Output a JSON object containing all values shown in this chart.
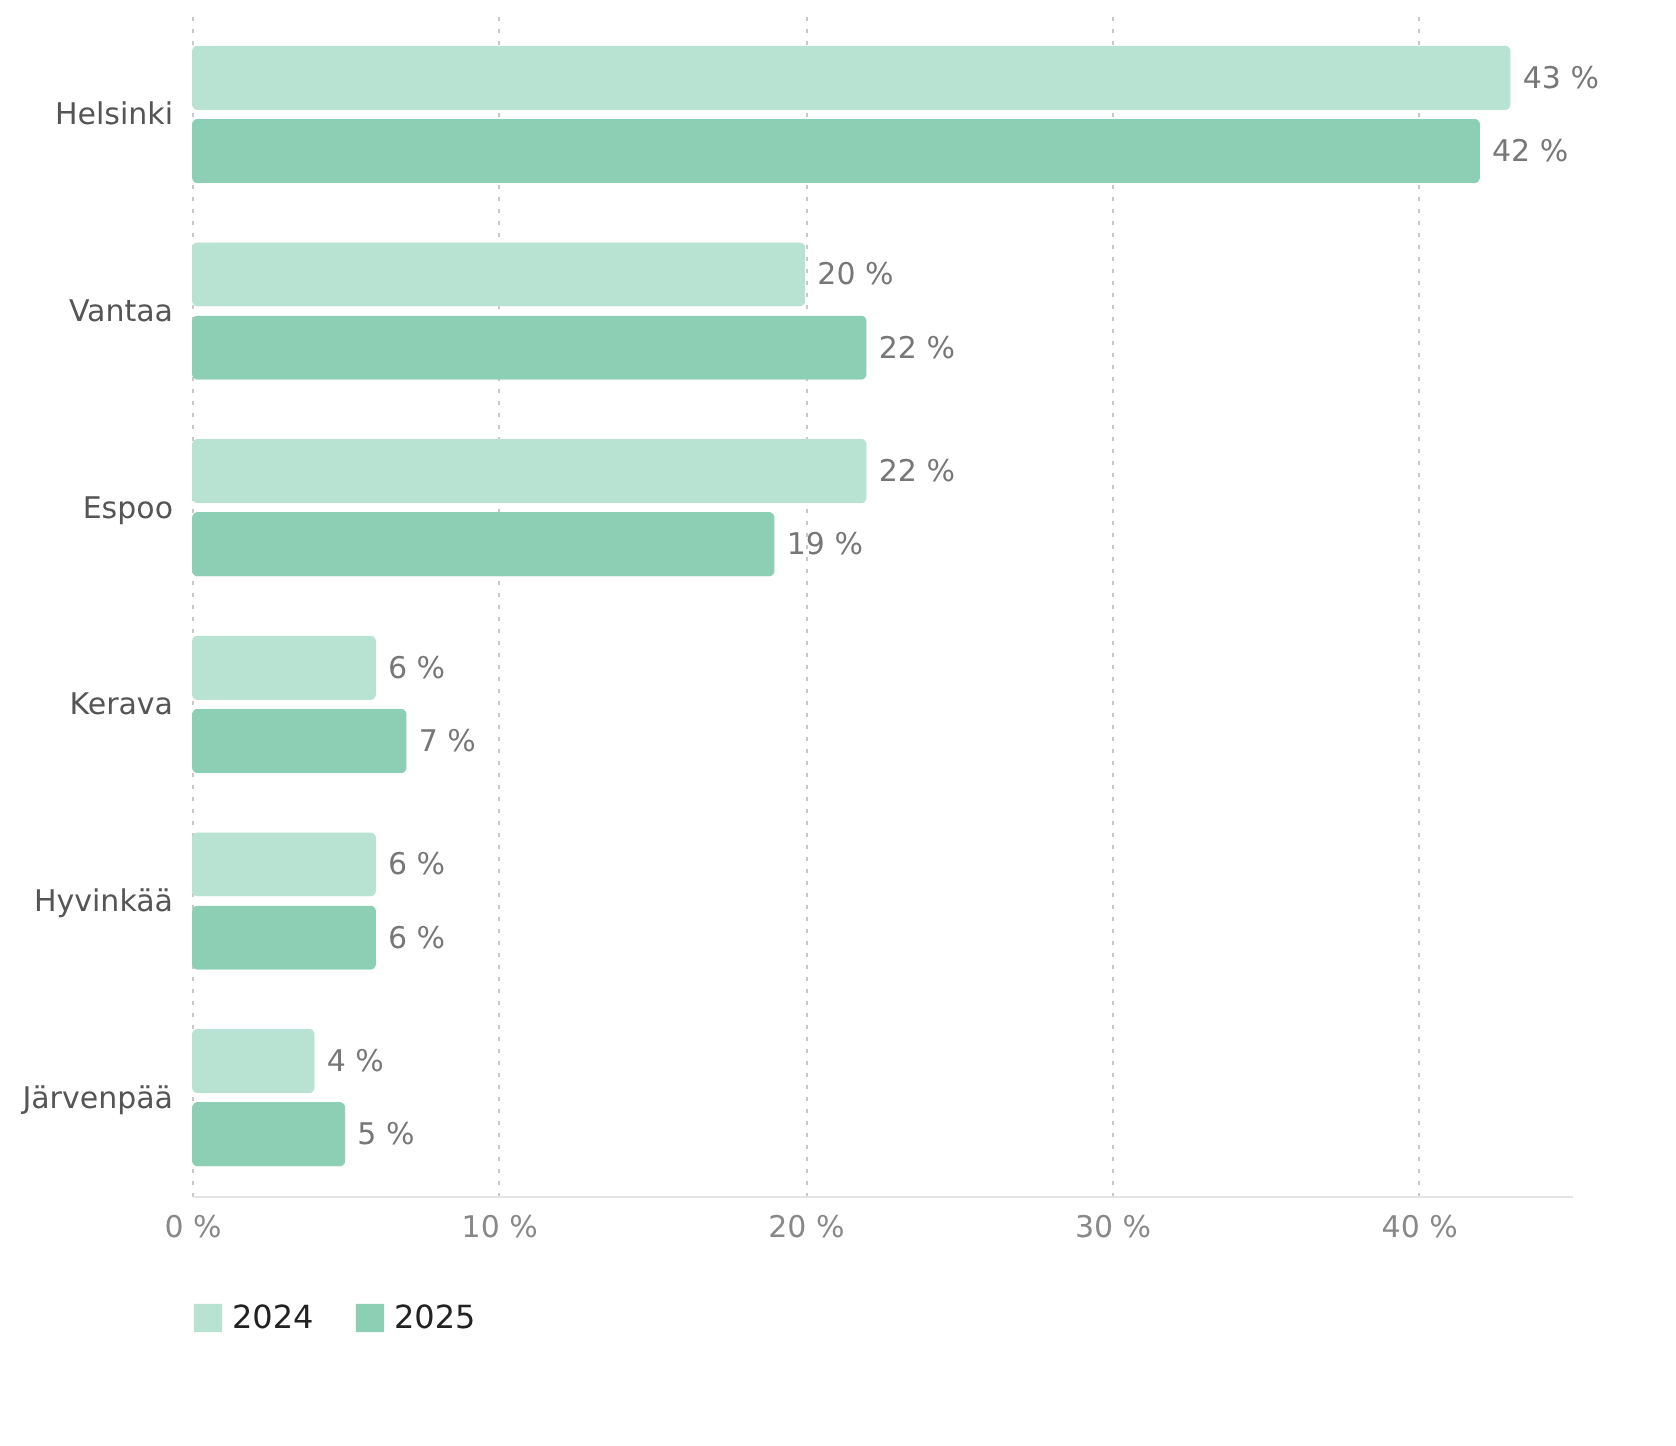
{
  "chart_data": {
    "type": "bar",
    "orientation": "horizontal",
    "categories": [
      "Helsinki",
      "Vantaa",
      "Espoo",
      "Kerava",
      "Hyvinkää",
      "Järvenpää"
    ],
    "series": [
      {
        "name": "2024",
        "color": "#b8e2d2",
        "values": [
          43,
          20,
          22,
          6,
          6,
          4
        ],
        "value_labels": [
          "43 %",
          "20 %",
          "22 %",
          "6 %",
          "6 %",
          "4 %"
        ]
      },
      {
        "name": "2025",
        "color": "#8ccfb5",
        "values": [
          42,
          22,
          19,
          7,
          6,
          5
        ],
        "value_labels": [
          "42 %",
          "22 %",
          "19 %",
          "7 %",
          "6 %",
          "5 %"
        ]
      }
    ],
    "xlim": [
      0,
      45
    ],
    "xticks": [
      {
        "value": 0,
        "label": "0 %"
      },
      {
        "value": 10,
        "label": "10 %"
      },
      {
        "value": 20,
        "label": "20 %"
      },
      {
        "value": 30,
        "label": "30 %"
      },
      {
        "value": 40,
        "label": "40 %"
      }
    ],
    "grid": "x",
    "legend": "bottom left"
  }
}
